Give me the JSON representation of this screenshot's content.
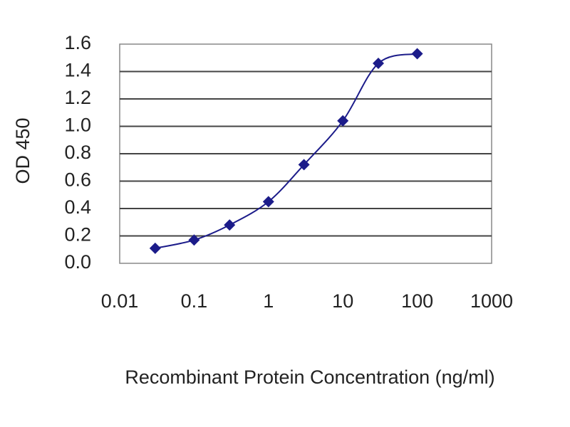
{
  "chart_data": {
    "type": "line",
    "x_label": "Recombinant Protein Concentration (ng/ml)",
    "y_label": "OD 450",
    "x": [
      0.03,
      0.1,
      0.3,
      1,
      3,
      10,
      30,
      100
    ],
    "values": [
      0.11,
      0.17,
      0.28,
      0.45,
      0.72,
      1.04,
      1.46,
      1.53
    ],
    "color": "#1c1c8a",
    "xscale": "log",
    "xlim": [
      0.01,
      1000
    ],
    "xticks": [
      0.01,
      0.1,
      1,
      10,
      100,
      1000
    ],
    "ylim": [
      0,
      1.6
    ],
    "yticks": [
      {
        "value": 0,
        "label": "0.0"
      },
      0.2,
      0.4,
      0.6,
      0.8,
      {
        "value": 1,
        "label": "1.0"
      },
      1.2,
      1.4,
      1.6
    ],
    "grid": true
  }
}
